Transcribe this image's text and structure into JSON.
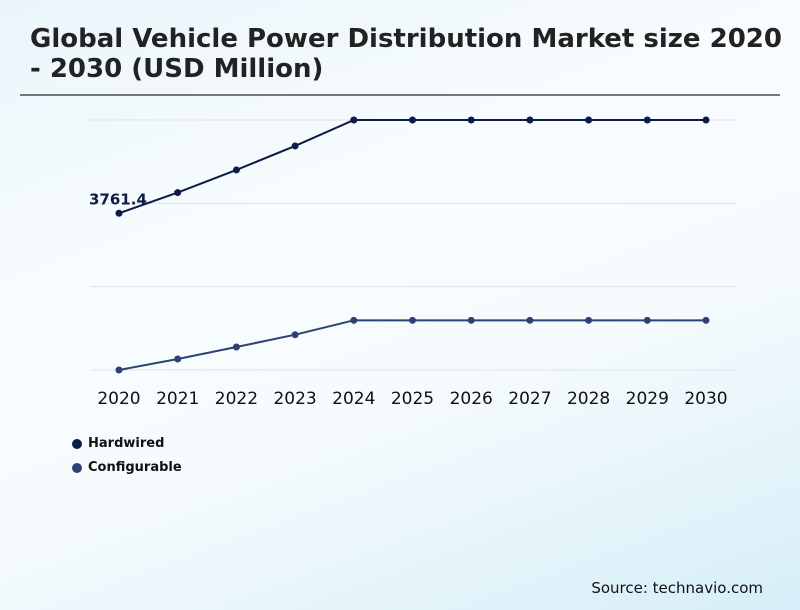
{
  "title": "Global Vehicle Power Distribution Market size 2020 - 2030 (USD Million)",
  "source": "Source: technavio.com",
  "colors": {
    "hardwired": "#0d1b45",
    "configurable": "#2c4274",
    "grid": "#e2e2e2"
  },
  "chart_data": {
    "type": "line",
    "title": "Global Vehicle Power Distribution Market size 2020 - 2030 (USD Million)",
    "xlabel": "",
    "ylabel": "",
    "x": [
      "2020",
      "2021",
      "2022",
      "2023",
      "2024",
      "2025",
      "2026",
      "2027",
      "2028",
      "2029",
      "2030"
    ],
    "ylim": [
      0,
      6000
    ],
    "yticks": [
      0,
      2000,
      4000,
      6000
    ],
    "y_tick_labels_shown": false,
    "grid": "horizontal",
    "legend_position": "bottom-left",
    "series": [
      {
        "name": "Hardwired",
        "values": [
          3761.4,
          4258,
          4801,
          5377,
          6000,
          6000,
          6000,
          6000,
          6000,
          6000,
          6000
        ]
      },
      {
        "name": "Configurable",
        "values": [
          0,
          264,
          552,
          847,
          1192,
          1192,
          1192,
          1192,
          1192,
          1192,
          1192
        ]
      }
    ],
    "annotations": [
      {
        "series": "Hardwired",
        "x": "2020",
        "text": "3761.4"
      }
    ]
  }
}
